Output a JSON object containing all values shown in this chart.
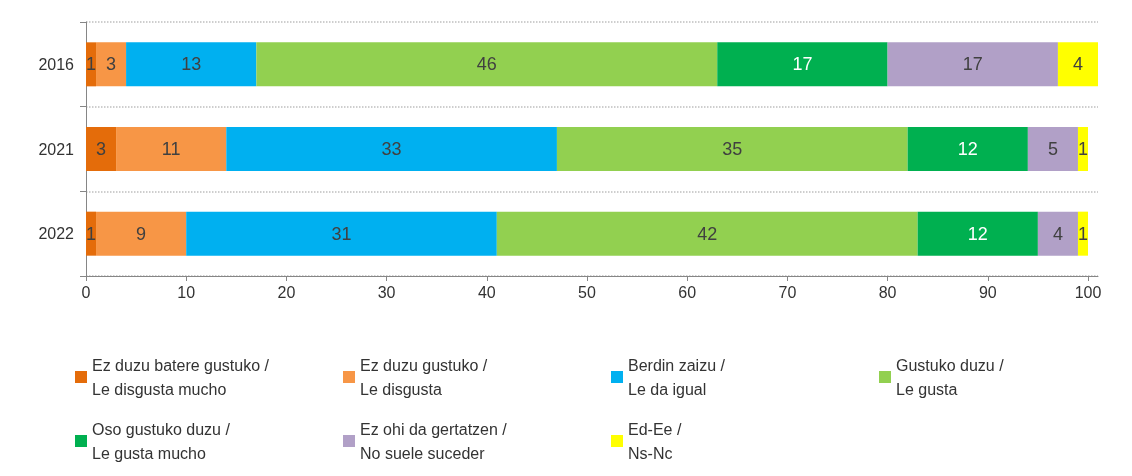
{
  "chart_data": {
    "type": "bar",
    "orientation": "horizontal",
    "stacked": true,
    "categories": [
      "2016",
      "2021",
      "2022"
    ],
    "series": [
      {
        "name": "Ez duzu batere gustuko /\nLe disgusta mucho",
        "color": "#e46c0a",
        "values": [
          1,
          3,
          1
        ]
      },
      {
        "name": "Ez duzu gustuko /\nLe disgusta",
        "color": "#f79646",
        "values": [
          3,
          11,
          9
        ]
      },
      {
        "name": "Berdin zaizu /\nLe da igual",
        "color": "#00b0f0",
        "values": [
          13,
          33,
          31
        ]
      },
      {
        "name": "Gustuko duzu /\nLe gusta",
        "color": "#92d050",
        "values": [
          46,
          35,
          42
        ]
      },
      {
        "name": "Oso gustuko duzu /\nLe gusta mucho",
        "color": "#00b050",
        "values": [
          17,
          12,
          12
        ]
      },
      {
        "name": "Ez ohi da gertatzen /\nNo suele suceder",
        "color": "#b1a0c7",
        "values": [
          17,
          5,
          4
        ]
      },
      {
        "name": "Ed-Ee /\nNs-Nc",
        "color": "#ffff00",
        "values": [
          4,
          1,
          1
        ]
      }
    ],
    "xlim": [
      0,
      101
    ],
    "xticks": [
      0,
      10,
      20,
      30,
      40,
      50,
      60,
      70,
      80,
      90,
      100
    ],
    "grid": "y",
    "legend": "bottom",
    "data_labels": true
  }
}
